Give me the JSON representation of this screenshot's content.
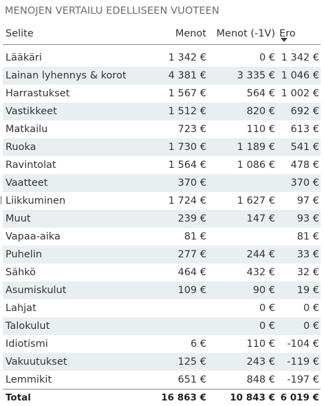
{
  "title": "MENOJEN VERTAILU EDELLISEEN VUOTEEN",
  "columns": {
    "label": "Selite",
    "menot": "Menot",
    "prev": "Menot (-1V)",
    "ero": "Ero"
  },
  "rows": [
    {
      "label": "Lääkäri",
      "menot": "1 342 €",
      "prev": "0 €",
      "ero": "1 342 €"
    },
    {
      "label": "Lainan lyhennys & korot",
      "menot": "4 381 €",
      "prev": "3 335 €",
      "ero": "1 046 €"
    },
    {
      "label": "Harrastukset",
      "menot": "1 567 €",
      "prev": "564 €",
      "ero": "1 002 €"
    },
    {
      "label": "Vastikkeet",
      "menot": "1 512 €",
      "prev": "820 €",
      "ero": "692 €"
    },
    {
      "label": "Matkailu",
      "menot": "723 €",
      "prev": "110 €",
      "ero": "613 €"
    },
    {
      "label": "Ruoka",
      "menot": "1 730 €",
      "prev": "1 189 €",
      "ero": "541 €"
    },
    {
      "label": "Ravintolat",
      "menot": "1 564 €",
      "prev": "1 086 €",
      "ero": "478 €"
    },
    {
      "label": "Vaatteet",
      "menot": "370 €",
      "prev": "",
      "ero": "370 €"
    },
    {
      "label": "Liikkuminen",
      "menot": "1 724 €",
      "prev": "1 627 €",
      "ero": "97 €"
    },
    {
      "label": "Muut",
      "menot": "239 €",
      "prev": "147 €",
      "ero": "93 €"
    },
    {
      "label": "Vapaa-aika",
      "menot": "81 €",
      "prev": "",
      "ero": "81 €"
    },
    {
      "label": "Puhelin",
      "menot": "277 €",
      "prev": "244 €",
      "ero": "33 €"
    },
    {
      "label": "Sähkö",
      "menot": "464 €",
      "prev": "432 €",
      "ero": "32 €"
    },
    {
      "label": "Asumiskulut",
      "menot": "109 €",
      "prev": "90 €",
      "ero": "19 €"
    },
    {
      "label": "Lahjat",
      "menot": "",
      "prev": "0 €",
      "ero": "0 €"
    },
    {
      "label": "Talokulut",
      "menot": "",
      "prev": "0 €",
      "ero": "0 €"
    },
    {
      "label": "Idiotismi",
      "menot": "6 €",
      "prev": "110 €",
      "ero": "-104 €"
    },
    {
      "label": "Vakuutukset",
      "menot": "125 €",
      "prev": "243 €",
      "ero": "-119 €"
    },
    {
      "label": "Lemmikit",
      "menot": "651 €",
      "prev": "848 €",
      "ero": "-197 €"
    }
  ],
  "total": {
    "label": "Total",
    "menot": "16 863 €",
    "prev": "10 843 €",
    "ero": "6 019 €"
  },
  "sort": {
    "column": "ero",
    "direction": "descending",
    "icon": "sort-descending-icon"
  },
  "colors": {
    "band": "#e9eff1",
    "rule": "#8a8a8a",
    "sort_arrow": "#2b3f5c"
  }
}
